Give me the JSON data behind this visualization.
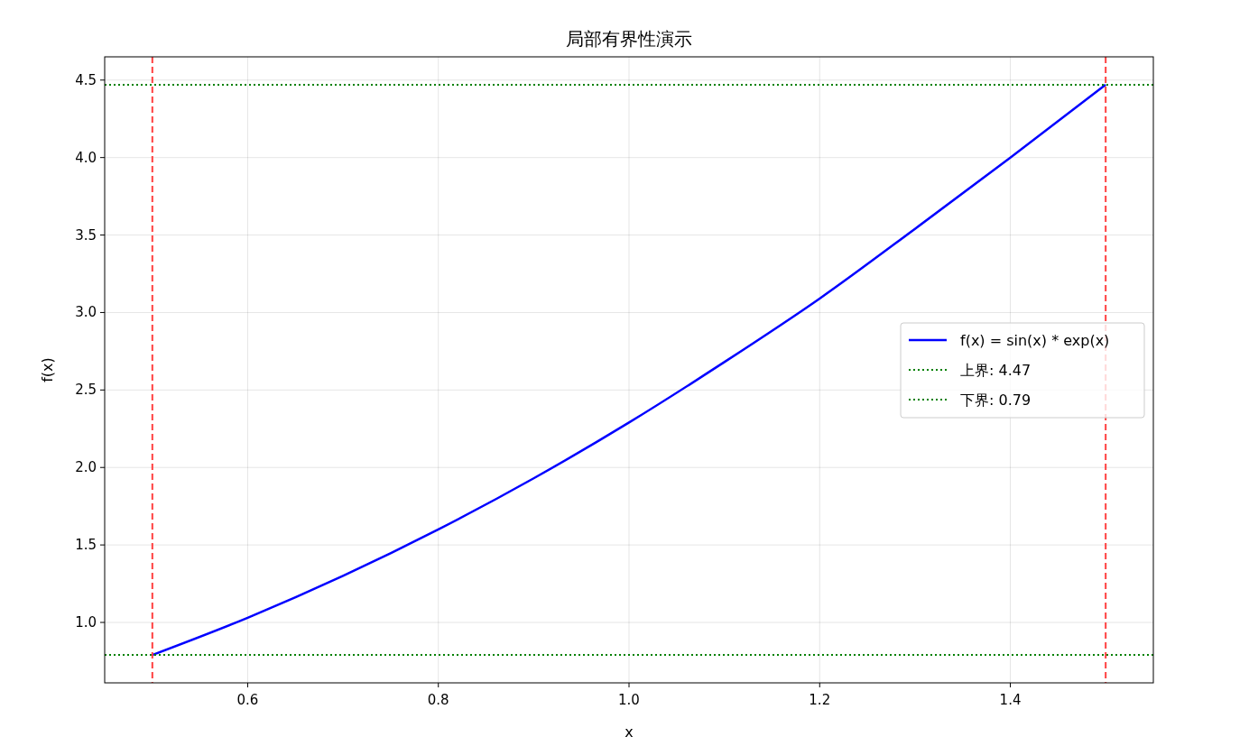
{
  "chart_data": {
    "type": "line",
    "title": "局部有界性演示",
    "xlabel": "x",
    "ylabel": "f(x)",
    "x": [
      0.5,
      0.6,
      0.7,
      0.8,
      0.9,
      1.0,
      1.1,
      1.2,
      1.3,
      1.4,
      1.5
    ],
    "series": [
      {
        "name": "f(x) = sin(x) * exp(x)",
        "color": "#0000ff",
        "values": [
          0.79,
          1.03,
          1.3,
          1.6,
          1.93,
          2.29,
          2.68,
          3.09,
          3.54,
          4.0,
          4.47
        ]
      }
    ],
    "xlim": [
      0.45,
      1.55
    ],
    "ylim": [
      0.61,
      4.65
    ],
    "xticks": [
      0.6,
      0.8,
      {
        "value": 1,
        "label": "1.0"
      },
      1.2,
      1.4
    ],
    "yticks": [
      {
        "value": 1,
        "label": "1.0"
      },
      1.5,
      {
        "value": 2,
        "label": "2.0"
      },
      2.5,
      {
        "value": 3,
        "label": "3.0"
      },
      3.5,
      {
        "value": 4,
        "label": "4.0"
      },
      4.5
    ],
    "ref_lines": [
      {
        "axis": "y",
        "value": 4.47,
        "label": "上界: 4.47",
        "color": "#008000",
        "line_style": "dotted"
      },
      {
        "axis": "y",
        "value": 0.79,
        "label": "下界: 0.79",
        "color": "#008000",
        "line_style": "dotted"
      },
      {
        "axis": "x",
        "value": 0.5,
        "color": "#ff4040",
        "line_style": "dashed"
      },
      {
        "axis": "x",
        "value": 1.5,
        "color": "#ff4040",
        "line_style": "dashed"
      }
    ],
    "grid": true,
    "legend": "right",
    "line_style": "solid",
    "marker": "none"
  }
}
